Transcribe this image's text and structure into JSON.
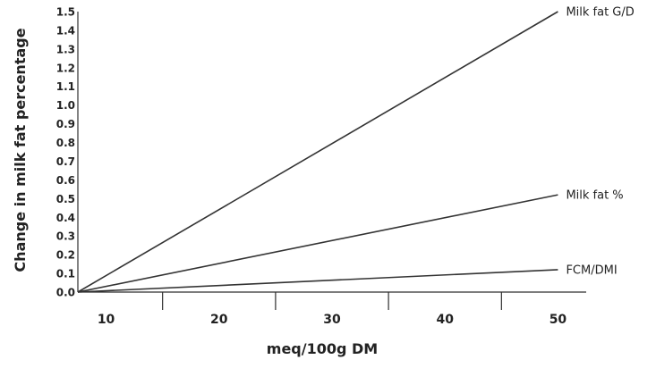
{
  "chart_data": {
    "type": "line",
    "xlabel": "meq/100g DM",
    "ylabel": "Change in milk fat percentage",
    "xlim": [
      7.5,
      52.5
    ],
    "ylim": [
      0.0,
      1.5
    ],
    "x_ticks": [
      10,
      20,
      30,
      40,
      50
    ],
    "y_ticks": [
      0.0,
      0.1,
      0.2,
      0.3,
      0.4,
      0.5,
      0.6,
      0.7,
      0.8,
      0.9,
      1.0,
      1.1,
      1.2,
      1.3,
      1.4,
      1.5
    ],
    "y_tick_labels": [
      "0.0",
      "0.1",
      "0.2",
      "0.3",
      "0.4",
      "0.5",
      "0.6",
      "0.7",
      "0.8",
      "0.9",
      "1.0",
      "1.1",
      "1.2",
      "1.3",
      "1.4",
      "1.5"
    ],
    "grid": false,
    "legend": "none (series labeled at line ends)",
    "series": [
      {
        "name": "Milk fat G/D",
        "x": [
          7.5,
          50
        ],
        "values": [
          0.0,
          1.5
        ]
      },
      {
        "name": "Milk fat %",
        "x": [
          7.5,
          50
        ],
        "values": [
          0.0,
          0.52
        ]
      },
      {
        "name": "FCM/DMI",
        "x": [
          7.5,
          50
        ],
        "values": [
          0.0,
          0.12
        ]
      }
    ]
  },
  "colors": {
    "line": "#333333",
    "axis": "#2f2f2f",
    "text": "#222222"
  }
}
